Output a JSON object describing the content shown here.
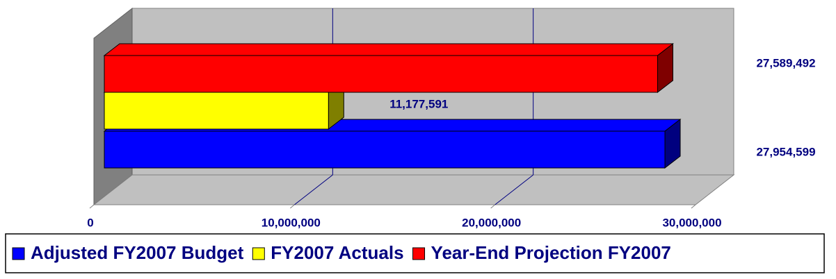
{
  "chart_data": {
    "type": "bar3d",
    "orientation": "horizontal",
    "categories": [
      null
    ],
    "series": [
      {
        "name": "Adjusted FY2007 Budget",
        "color": "#0000ff",
        "values": [
          27954599
        ],
        "value_labels": [
          "27,954,599"
        ]
      },
      {
        "name": "FY2007 Actuals",
        "color": "#ffff00",
        "values": [
          11177591
        ],
        "value_labels": [
          "11,177,591"
        ]
      },
      {
        "name": "Year-End Projection FY2007",
        "color": "#ff0000",
        "values": [
          27589492
        ],
        "value_labels": [
          "27,589,492"
        ]
      }
    ],
    "xlim": [
      0,
      30000000
    ],
    "xticks": [
      0,
      {
        "value": 10000000,
        "label": "10,000,000"
      },
      {
        "value": 20000000,
        "label": "20,000,000"
      },
      {
        "value": 30000000,
        "label": "30,000,000"
      }
    ],
    "grid": true,
    "legend": "bottom"
  }
}
